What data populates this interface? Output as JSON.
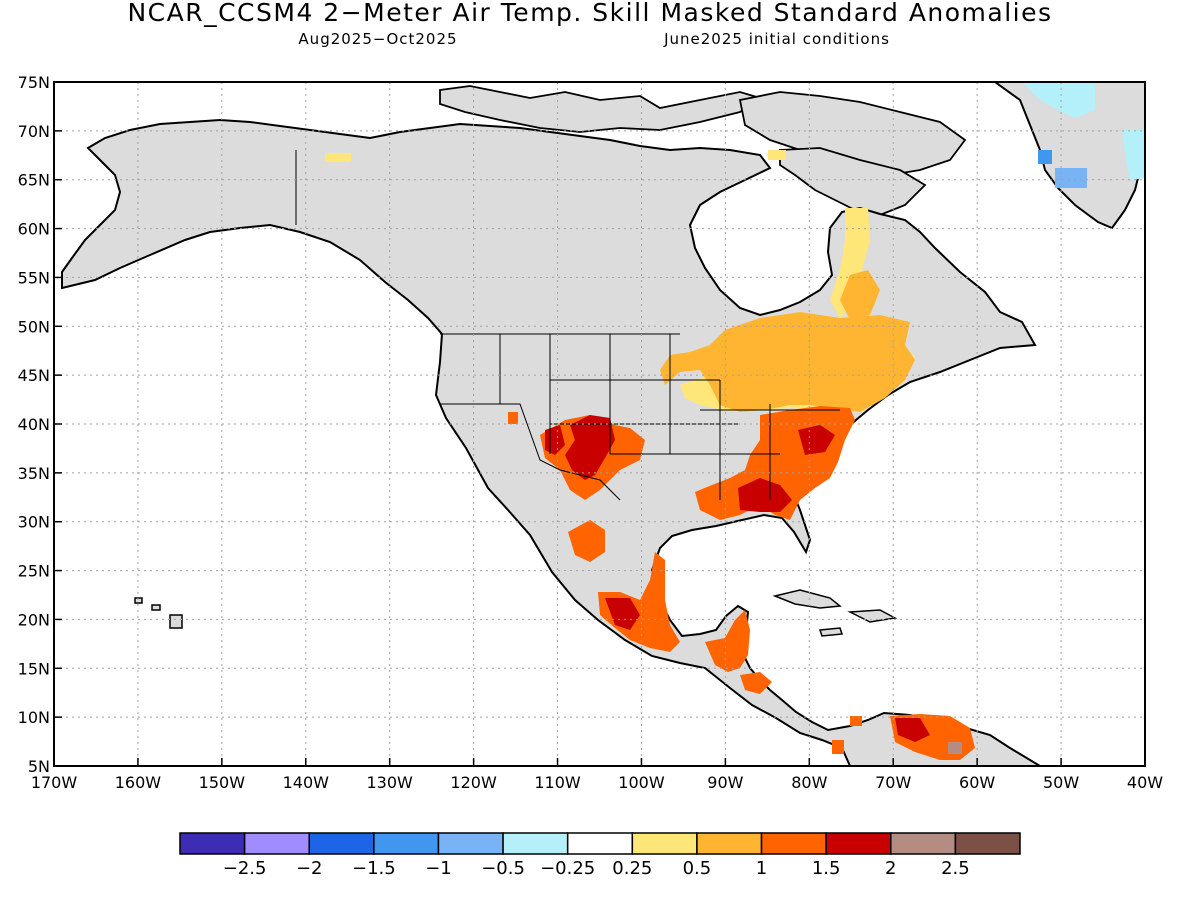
{
  "title": "NCAR_CCSM4 2−Meter Air Temp. Skill Masked Standard Anomalies",
  "subtitle_left": "Aug2025−Oct2025",
  "subtitle_right": "June2025 initial conditions",
  "colors": {
    "land_gray": "#dcdcdc",
    "outline": "#000000",
    "grid": "#a0a0a0"
  },
  "map": {
    "lon_range": [
      -170,
      -40
    ],
    "lat_range": [
      5,
      75
    ],
    "grid": true,
    "lat_ticks": [
      {
        "value": 75,
        "label": "75N"
      },
      {
        "value": 70,
        "label": "70N"
      },
      {
        "value": 65,
        "label": "65N"
      },
      {
        "value": 60,
        "label": "60N"
      },
      {
        "value": 55,
        "label": "55N"
      },
      {
        "value": 50,
        "label": "50N"
      },
      {
        "value": 45,
        "label": "45N"
      },
      {
        "value": 40,
        "label": "40N"
      },
      {
        "value": 35,
        "label": "35N"
      },
      {
        "value": 30,
        "label": "30N"
      },
      {
        "value": 25,
        "label": "25N"
      },
      {
        "value": 20,
        "label": "20N"
      },
      {
        "value": 15,
        "label": "15N"
      },
      {
        "value": 10,
        "label": "10N"
      },
      {
        "value": 5,
        "label": "5N"
      }
    ],
    "lon_ticks": [
      {
        "value": -170,
        "label": "170W"
      },
      {
        "value": -160,
        "label": "160W"
      },
      {
        "value": -150,
        "label": "150W"
      },
      {
        "value": -140,
        "label": "140W"
      },
      {
        "value": -130,
        "label": "130W"
      },
      {
        "value": -120,
        "label": "120W"
      },
      {
        "value": -110,
        "label": "110W"
      },
      {
        "value": -100,
        "label": "100W"
      },
      {
        "value": -90,
        "label": "90W"
      },
      {
        "value": -80,
        "label": "80W"
      },
      {
        "value": -70,
        "label": "70W"
      },
      {
        "value": -60,
        "label": "60W"
      },
      {
        "value": -50,
        "label": "50W"
      },
      {
        "value": -40,
        "label": "40W"
      }
    ]
  },
  "colorbar": {
    "colors": [
      "#3d2db4",
      "#a08cff",
      "#1e64e6",
      "#4196f0",
      "#78b4f5",
      "#b4f0fa",
      "#ffffff",
      "#ffe678",
      "#ffb432",
      "#ff6400",
      "#c80000",
      "#b48c82",
      "#7d5046"
    ],
    "labels": [
      "−2.5",
      "−2",
      "−1.5",
      "−1",
      "−0.5",
      "−0.25",
      "0.25",
      "0.5",
      "1",
      "1.5",
      "2",
      "2.5"
    ]
  }
}
